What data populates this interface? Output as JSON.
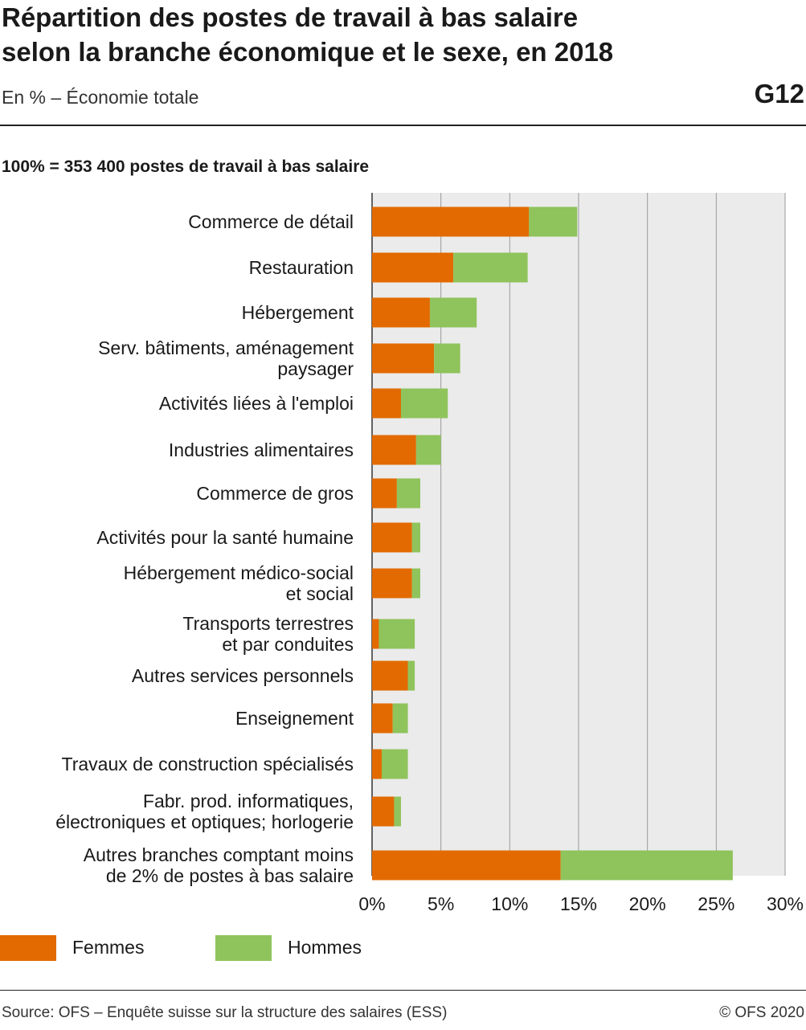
{
  "header": {
    "title_line1": "Répartition des postes de travail à bas salaire",
    "title_line2": "selon la branche économique et le sexe, en 2018",
    "subtitle": "En % – Économie totale",
    "code": "G12",
    "basis": "100% = 353 400 postes de travail à bas salaire"
  },
  "legend": {
    "femmes": "Femmes",
    "hommes": "Hommes"
  },
  "footer": {
    "source": "Source: OFS – Enquête suisse sur la structure des salaires (ESS)",
    "copyright": "© OFS 2020"
  },
  "colors": {
    "femmes": "#e26a00",
    "hommes": "#8fc35c",
    "plot_bg": "#ebebeb",
    "grid": "#9a9a9a"
  },
  "chart_data": {
    "type": "bar",
    "orientation": "horizontal",
    "stacked": true,
    "categories": [
      [
        "Commerce de détail"
      ],
      [
        "Restauration"
      ],
      [
        "Hébergement"
      ],
      [
        "Serv. bâtiments, aménagement",
        "paysager"
      ],
      [
        "Activités liées à l'emploi"
      ],
      [
        "Industries alimentaires"
      ],
      [
        "Commerce de gros"
      ],
      [
        "Activités pour la santé humaine"
      ],
      [
        "Hébergement médico-social",
        "et social"
      ],
      [
        "Transports terrestres",
        "et par conduites"
      ],
      [
        "Autres services personnels"
      ],
      [
        "Enseignement"
      ],
      [
        "Travaux de construction spécialisés"
      ],
      [
        "Fabr. prod. informatiques,",
        "électroniques et optiques; horlogerie"
      ],
      [
        "Autres branches comptant moins",
        "de 2% de postes à bas salaire"
      ]
    ],
    "series": [
      {
        "name": "Femmes",
        "values": [
          11.4,
          5.9,
          4.2,
          4.5,
          2.1,
          3.2,
          1.8,
          2.9,
          2.9,
          0.5,
          2.6,
          1.5,
          0.7,
          1.6,
          13.7
        ]
      },
      {
        "name": "Hommes",
        "values": [
          3.5,
          5.4,
          3.4,
          1.9,
          3.4,
          1.8,
          1.7,
          0.6,
          0.6,
          2.6,
          0.5,
          1.1,
          1.9,
          0.5,
          12.5
        ]
      }
    ],
    "xlim": [
      0,
      30
    ],
    "xticks": [
      0,
      5,
      10,
      15,
      20,
      25,
      30
    ],
    "xtick_labels": [
      "0%",
      "5%",
      "10%",
      "15%",
      "20%",
      "25%",
      "30%"
    ],
    "grid": true,
    "legend_position": "bottom-left"
  }
}
